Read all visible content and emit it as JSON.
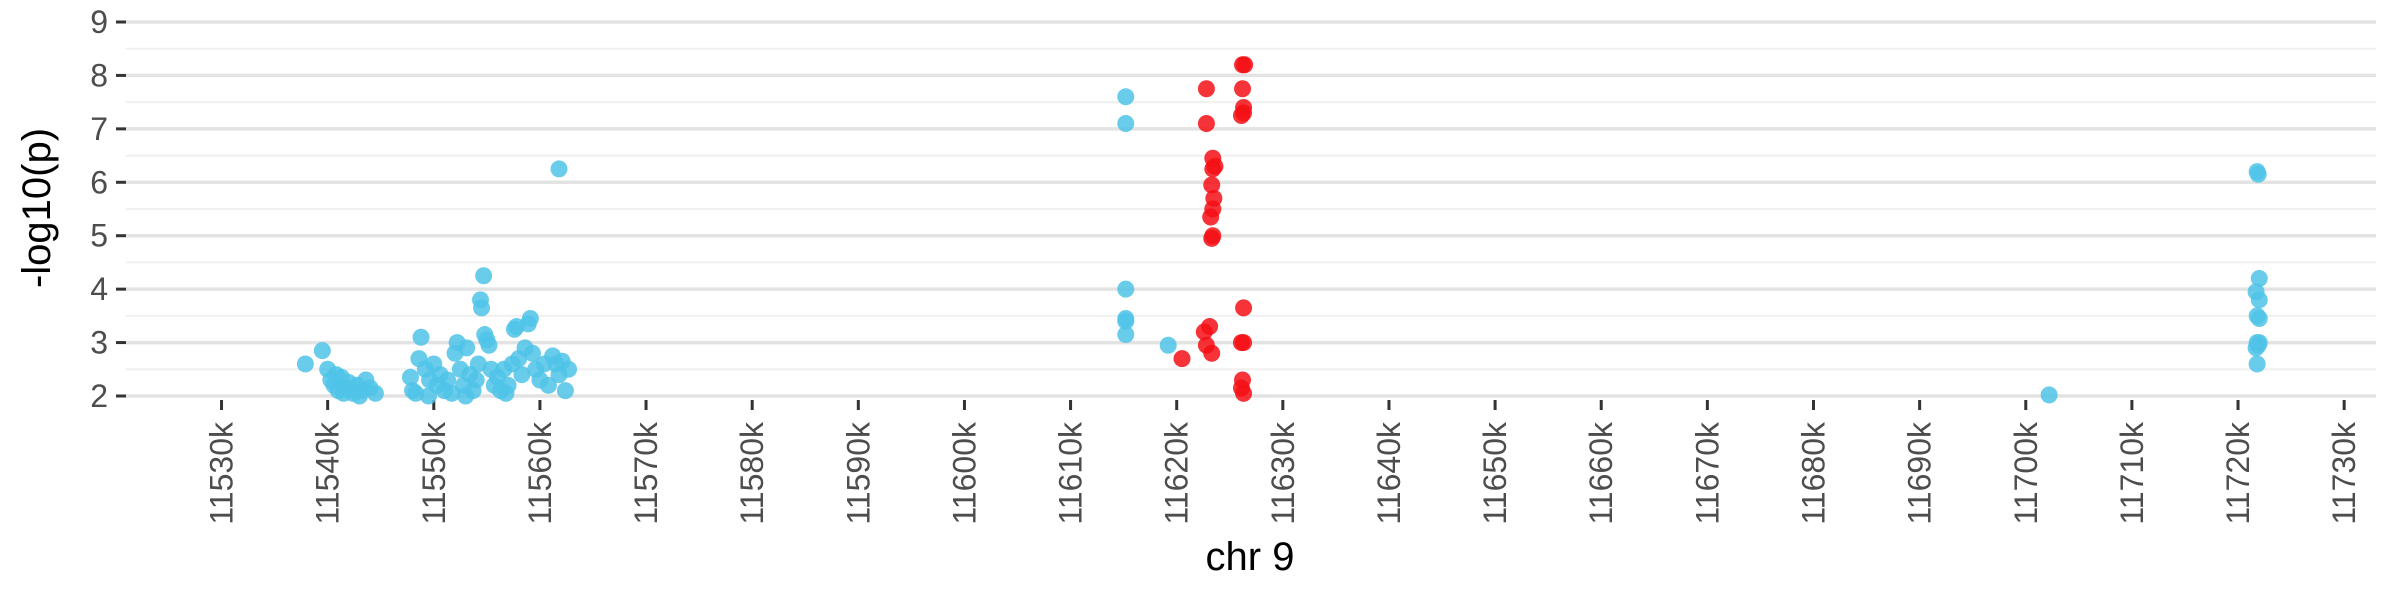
{
  "chart_data": {
    "type": "scatter",
    "title": "",
    "xlabel": "chr 9",
    "ylabel": "-log10(p)",
    "xlim": [
      11521,
      11733
    ],
    "ylim": [
      2,
      9
    ],
    "x_ticks": [
      11530,
      11540,
      11550,
      11560,
      11570,
      11580,
      11590,
      11600,
      11610,
      11620,
      11630,
      11640,
      11650,
      11660,
      11670,
      11680,
      11690,
      11700,
      11710,
      11720,
      11730
    ],
    "x_tick_labels": [
      "11530k",
      "11540k",
      "11550k",
      "11560k",
      "11570k",
      "11580k",
      "11590k",
      "11600k",
      "11610k",
      "11620k",
      "11630k",
      "11640k",
      "11650k",
      "11660k",
      "11670k",
      "11680k",
      "11690k",
      "11700k",
      "11710k",
      "11720k",
      "11730k"
    ],
    "y_ticks": [
      2,
      3,
      4,
      5,
      6,
      7,
      8,
      9
    ],
    "y_tick_labels": [
      "2",
      "3",
      "4",
      "5",
      "6",
      "7",
      "8",
      "9"
    ],
    "grid": "horizontal",
    "legend": "none",
    "x_unit": "kb",
    "series": [
      {
        "color": "#4fc3e8",
        "points": [
          [
            11537.9,
            2.6
          ],
          [
            11539.5,
            2.85
          ],
          [
            11540.0,
            2.5
          ],
          [
            11540.3,
            2.3
          ],
          [
            11540.6,
            2.2
          ],
          [
            11541.0,
            2.1
          ],
          [
            11541.3,
            2.35
          ],
          [
            11541.7,
            2.15
          ],
          [
            11542.0,
            2.25
          ],
          [
            11542.4,
            2.05
          ],
          [
            11542.8,
            2.2
          ],
          [
            11543.2,
            2.1
          ],
          [
            11543.6,
            2.3
          ],
          [
            11544.0,
            2.15
          ],
          [
            11544.5,
            2.05
          ],
          [
            11540.8,
            2.4
          ],
          [
            11541.5,
            2.05
          ],
          [
            11543.0,
            2.0
          ],
          [
            11547.8,
            2.35
          ],
          [
            11548.0,
            2.1
          ],
          [
            11548.3,
            2.05
          ],
          [
            11548.6,
            2.7
          ],
          [
            11548.8,
            3.1
          ],
          [
            11549.2,
            2.5
          ],
          [
            11549.6,
            2.3
          ],
          [
            11550.0,
            2.6
          ],
          [
            11550.3,
            2.2
          ],
          [
            11550.6,
            2.4
          ],
          [
            11551.0,
            2.1
          ],
          [
            11551.3,
            2.3
          ],
          [
            11551.7,
            2.05
          ],
          [
            11552.0,
            2.8
          ],
          [
            11552.2,
            3.0
          ],
          [
            11552.5,
            2.5
          ],
          [
            11552.8,
            2.2
          ],
          [
            11553.1,
            2.9
          ],
          [
            11553.4,
            2.4
          ],
          [
            11553.7,
            2.1
          ],
          [
            11554.0,
            2.3
          ],
          [
            11554.2,
            2.6
          ],
          [
            11554.4,
            3.8
          ],
          [
            11554.5,
            3.65
          ],
          [
            11554.7,
            4.25
          ],
          [
            11554.8,
            3.15
          ],
          [
            11555.0,
            3.05
          ],
          [
            11555.2,
            2.95
          ],
          [
            11555.4,
            2.5
          ],
          [
            11555.7,
            2.2
          ],
          [
            11556.0,
            2.35
          ],
          [
            11556.3,
            2.1
          ],
          [
            11556.6,
            2.5
          ],
          [
            11557.0,
            2.2
          ],
          [
            11557.4,
            2.6
          ],
          [
            11557.6,
            3.25
          ],
          [
            11557.8,
            3.3
          ],
          [
            11558.0,
            2.7
          ],
          [
            11558.3,
            2.4
          ],
          [
            11558.6,
            2.9
          ],
          [
            11558.9,
            3.35
          ],
          [
            11559.1,
            3.45
          ],
          [
            11559.3,
            2.8
          ],
          [
            11559.6,
            2.5
          ],
          [
            11560.0,
            2.3
          ],
          [
            11560.4,
            2.6
          ],
          [
            11560.8,
            2.2
          ],
          [
            11561.2,
            2.75
          ],
          [
            11561.5,
            2.6
          ],
          [
            11561.8,
            2.4
          ],
          [
            11562.1,
            2.65
          ],
          [
            11562.4,
            2.1
          ],
          [
            11562.7,
            2.5
          ],
          [
            11561.8,
            6.25
          ],
          [
            11549.5,
            2.0
          ],
          [
            11553.0,
            2.0
          ],
          [
            11556.8,
            2.05
          ],
          [
            11615.2,
            7.6
          ],
          [
            11615.2,
            7.1
          ],
          [
            11615.2,
            4.0
          ],
          [
            11615.2,
            3.45
          ],
          [
            11615.2,
            3.4
          ],
          [
            11615.2,
            3.15
          ],
          [
            11619.2,
            2.95
          ],
          [
            11702.2,
            2.02
          ],
          [
            11721.8,
            6.2
          ],
          [
            11721.9,
            6.15
          ],
          [
            11722.0,
            4.2
          ],
          [
            11721.7,
            3.95
          ],
          [
            11722.0,
            3.8
          ],
          [
            11721.8,
            3.5
          ],
          [
            11722.0,
            3.45
          ],
          [
            11721.8,
            3.0
          ],
          [
            11721.9,
            2.95
          ],
          [
            11722.0,
            3.0
          ],
          [
            11721.7,
            2.9
          ],
          [
            11721.8,
            2.6
          ]
        ]
      },
      {
        "color": "#f50f15",
        "points": [
          [
            11620.5,
            2.7
          ],
          [
            11622.6,
            3.2
          ],
          [
            11622.8,
            2.95
          ],
          [
            11623.1,
            3.3
          ],
          [
            11623.3,
            2.8
          ],
          [
            11623.3,
            4.95
          ],
          [
            11623.4,
            5.0
          ],
          [
            11623.2,
            5.35
          ],
          [
            11623.4,
            5.5
          ],
          [
            11623.5,
            5.7
          ],
          [
            11623.3,
            5.95
          ],
          [
            11623.4,
            6.25
          ],
          [
            11623.6,
            6.3
          ],
          [
            11623.4,
            6.45
          ],
          [
            11622.8,
            7.1
          ],
          [
            11622.8,
            7.75
          ],
          [
            11626.2,
            8.2
          ],
          [
            11626.4,
            8.2
          ],
          [
            11626.2,
            7.75
          ],
          [
            11626.3,
            7.4
          ],
          [
            11626.3,
            7.3
          ],
          [
            11626.1,
            7.25
          ],
          [
            11626.3,
            3.65
          ],
          [
            11626.1,
            3.0
          ],
          [
            11626.3,
            3.0
          ],
          [
            11626.2,
            2.3
          ],
          [
            11626.1,
            2.15
          ],
          [
            11626.3,
            2.05
          ]
        ]
      }
    ]
  }
}
